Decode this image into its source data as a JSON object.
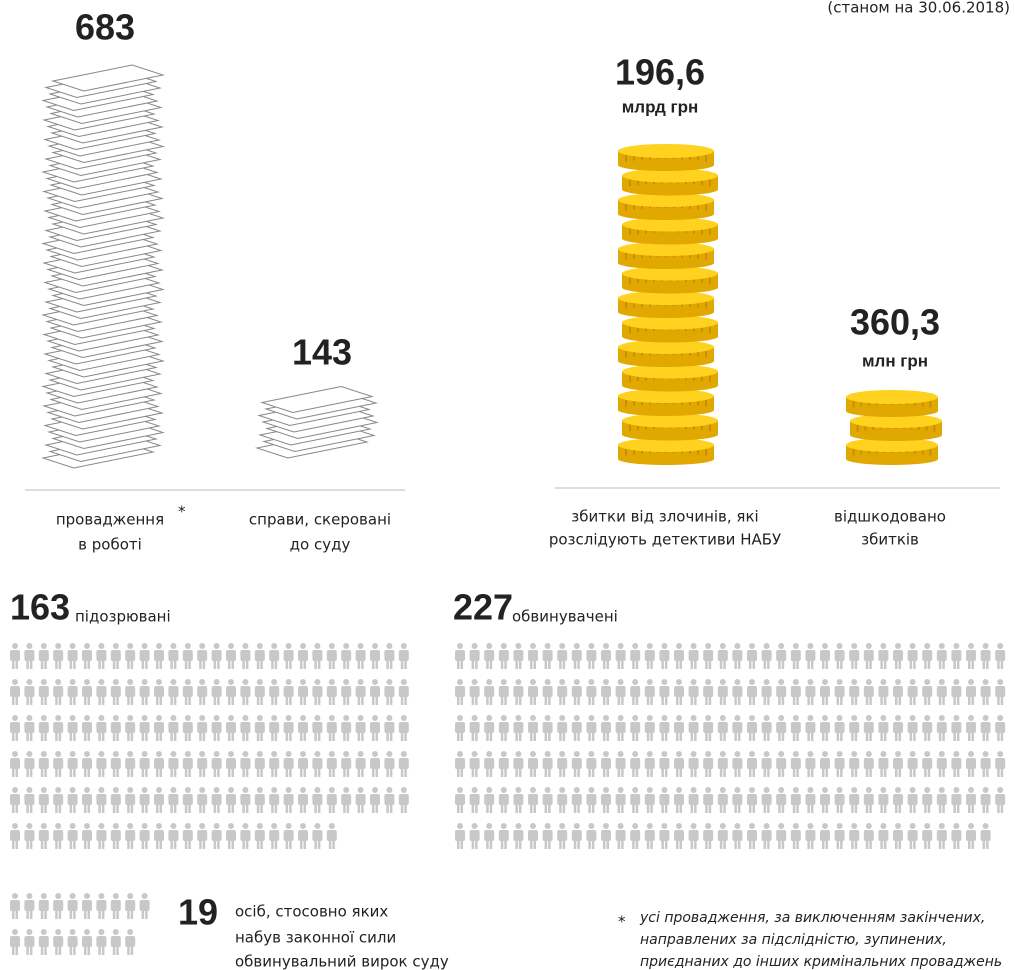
{
  "date_note": "(станом на 30.06.2018)",
  "cases": {
    "in_progress": {
      "number": "683",
      "label": [
        "провадження",
        "в роботі"
      ],
      "asterisk": "*"
    },
    "to_court": {
      "number": "143",
      "label": [
        "справи, скеровані",
        "до суду"
      ]
    }
  },
  "damages": {
    "total": {
      "number": "196,6",
      "unit": "млрд грн",
      "label": [
        "збитки від злочинів, які",
        "розслідують детективи НАБУ"
      ]
    },
    "recovered": {
      "number": "360,3",
      "unit": "млн грн",
      "label": [
        "відшкодовано",
        "збитків"
      ]
    }
  },
  "suspects": {
    "count": 163,
    "label": "підозрювані"
  },
  "accused": {
    "count": 227,
    "label": "обвинувачені"
  },
  "convicted": {
    "count": 19,
    "label": [
      "осіб, стосовно яких",
      "набув законної сили",
      "обвинувальний вирок суду"
    ]
  },
  "footnote": {
    "marker": "*",
    "lines": [
      "усі провадження, за виключенням закінчених,",
      "направлених за підслідністю, зупинених,",
      "приєднаних до інших кримінальних проваджень"
    ]
  }
}
